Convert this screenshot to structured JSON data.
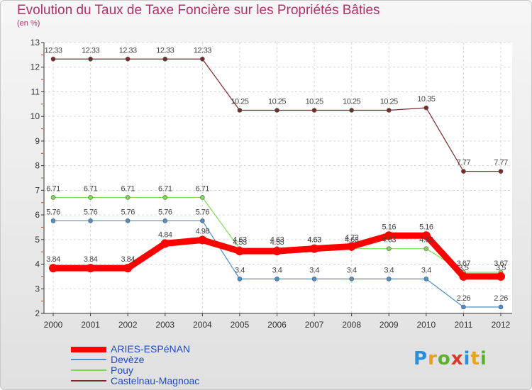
{
  "chart_data": {
    "type": "line",
    "title": "Evolution du Taux de Taxe Foncière sur les Propriétés Bâties",
    "subtitle": "(en %)",
    "xlabel": "",
    "ylabel": "",
    "categories": [
      "2000",
      "2001",
      "2002",
      "2003",
      "2004",
      "2005",
      "2006",
      "2007",
      "2008",
      "2009",
      "2010",
      "2011",
      "2012"
    ],
    "ylim": [
      2,
      13
    ],
    "yticks": [
      2,
      3,
      4,
      5,
      6,
      7,
      8,
      9,
      10,
      11,
      12,
      13
    ],
    "grid": true,
    "series": [
      {
        "name": "ARIES-ESPéNAN",
        "color": "#ff0000",
        "values": [
          3.84,
          3.84,
          3.84,
          4.84,
          4.98,
          4.53,
          4.53,
          4.63,
          4.72,
          5.16,
          5.16,
          3.5,
          3.5
        ],
        "labels": [
          "3.84",
          "3.84",
          "3.84",
          "4.84",
          "4.98",
          "4.53",
          "4.53",
          "4.63",
          "4.72",
          "5.16",
          "5.16",
          "3.5",
          "3.5"
        ]
      },
      {
        "name": "Devèze",
        "color": "#4f8fc8",
        "values": [
          5.76,
          5.76,
          5.76,
          5.76,
          5.76,
          3.4,
          3.4,
          3.4,
          3.4,
          3.4,
          3.4,
          2.26,
          2.26
        ],
        "labels": [
          "5.76",
          "5.76",
          "5.76",
          "5.76",
          "5.76",
          "3.4",
          "3.4",
          "3.4",
          "3.4",
          "3.4",
          "3.4",
          "2.26",
          "2.26"
        ]
      },
      {
        "name": "Pouy",
        "color": "#7ed957",
        "values": [
          6.71,
          6.71,
          6.71,
          6.71,
          6.71,
          4.63,
          4.63,
          4.63,
          4.63,
          4.63,
          4.63,
          3.67,
          3.67
        ],
        "labels": [
          "6.71",
          "6.71",
          "6.71",
          "6.71",
          "6.71",
          "4.63",
          "4.63",
          "4.63",
          "4.63",
          "4.63",
          "4.63",
          "3.67",
          "3.67"
        ]
      },
      {
        "name": "Castelnau-Magnoac",
        "color": "#7a2a2a",
        "values": [
          12.33,
          12.33,
          12.33,
          12.33,
          12.33,
          10.25,
          10.25,
          10.25,
          10.25,
          10.25,
          10.35,
          7.77,
          7.77
        ],
        "labels": [
          "12.33",
          "12.33",
          "12.33",
          "12.33",
          "12.33",
          "10.25",
          "10.25",
          "10.25",
          "10.25",
          "10.25",
          "10.35",
          "7.77",
          "7.77"
        ]
      }
    ]
  },
  "legend": [
    {
      "label": "ARIES-ESPéNAN",
      "color": "#ff0000"
    },
    {
      "label": "Devèze",
      "color": "#4f8fc8"
    },
    {
      "label": "Pouy",
      "color": "#7ed957"
    },
    {
      "label": "Castelnau-Magnoac",
      "color": "#7a2a2a"
    }
  ],
  "logo": {
    "text": "Proxiti"
  }
}
